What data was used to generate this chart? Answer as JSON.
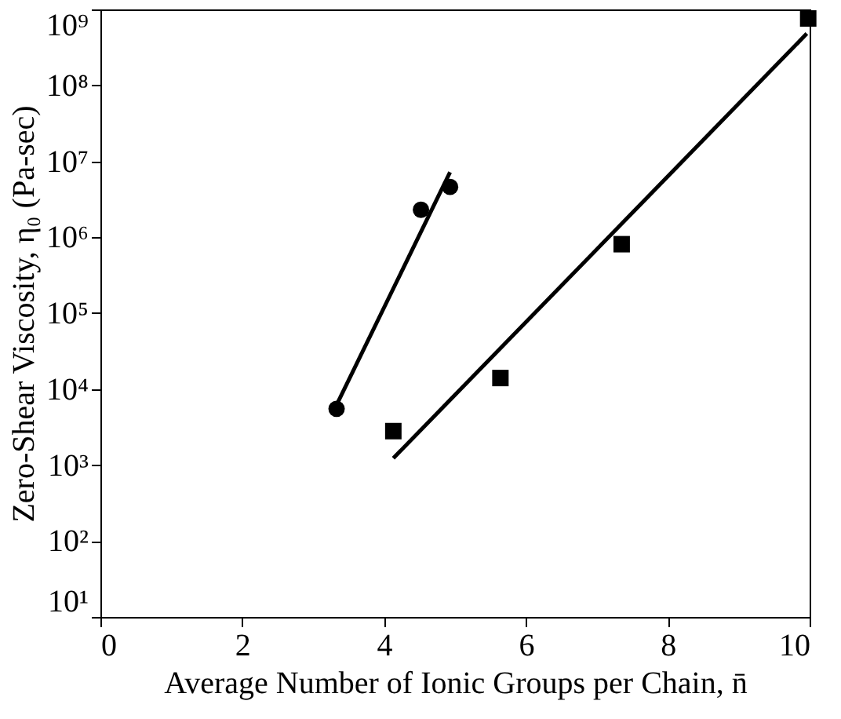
{
  "chart_data": {
    "type": "scatter",
    "xlabel": "Average Number of Ionic Groups per Chain, n̄",
    "ylabel": "Zero-Shear Viscosity, η₀ (Pa-sec)",
    "log": "y",
    "grid": false,
    "xlim": [
      0,
      10
    ],
    "xticks": [
      0,
      2,
      4,
      6,
      8,
      10
    ],
    "ylim": [
      10,
      1000000000
    ],
    "yticks": [
      {
        "value": 10,
        "label": "10¹"
      },
      {
        "value": 100,
        "label": "10²"
      },
      {
        "value": 1000,
        "label": "10³"
      },
      {
        "value": 10000,
        "label": "10⁴"
      },
      {
        "value": 100000,
        "label": "10⁵"
      },
      {
        "value": 1000000,
        "label": "10⁶"
      },
      {
        "value": 10000000,
        "label": "10⁷"
      },
      {
        "value": 100000000,
        "label": "10⁸"
      },
      {
        "value": 1000000000,
        "label": "10⁹"
      }
    ],
    "series": [
      {
        "marker": "circle",
        "color": "#000000",
        "x": [
          3.33,
          4.52,
          4.93
        ],
        "values": [
          5500,
          2300000,
          4600000
        ]
      },
      {
        "marker": "square",
        "color": "#000000",
        "x": [
          4.13,
          5.64,
          7.35,
          9.98
        ],
        "values": [
          2800,
          14000,
          810000,
          760000000
        ]
      },
      {
        "type": "line",
        "marker": "none",
        "line_style": "solid",
        "color": "#000000",
        "x": [
          3.33,
          4.93
        ],
        "values": [
          6200,
          7200000
        ]
      },
      {
        "type": "line",
        "marker": "none",
        "line_style": "solid",
        "color": "#000000",
        "x": [
          4.13,
          9.96
        ],
        "values": [
          1230,
          480000000
        ]
      }
    ]
  }
}
